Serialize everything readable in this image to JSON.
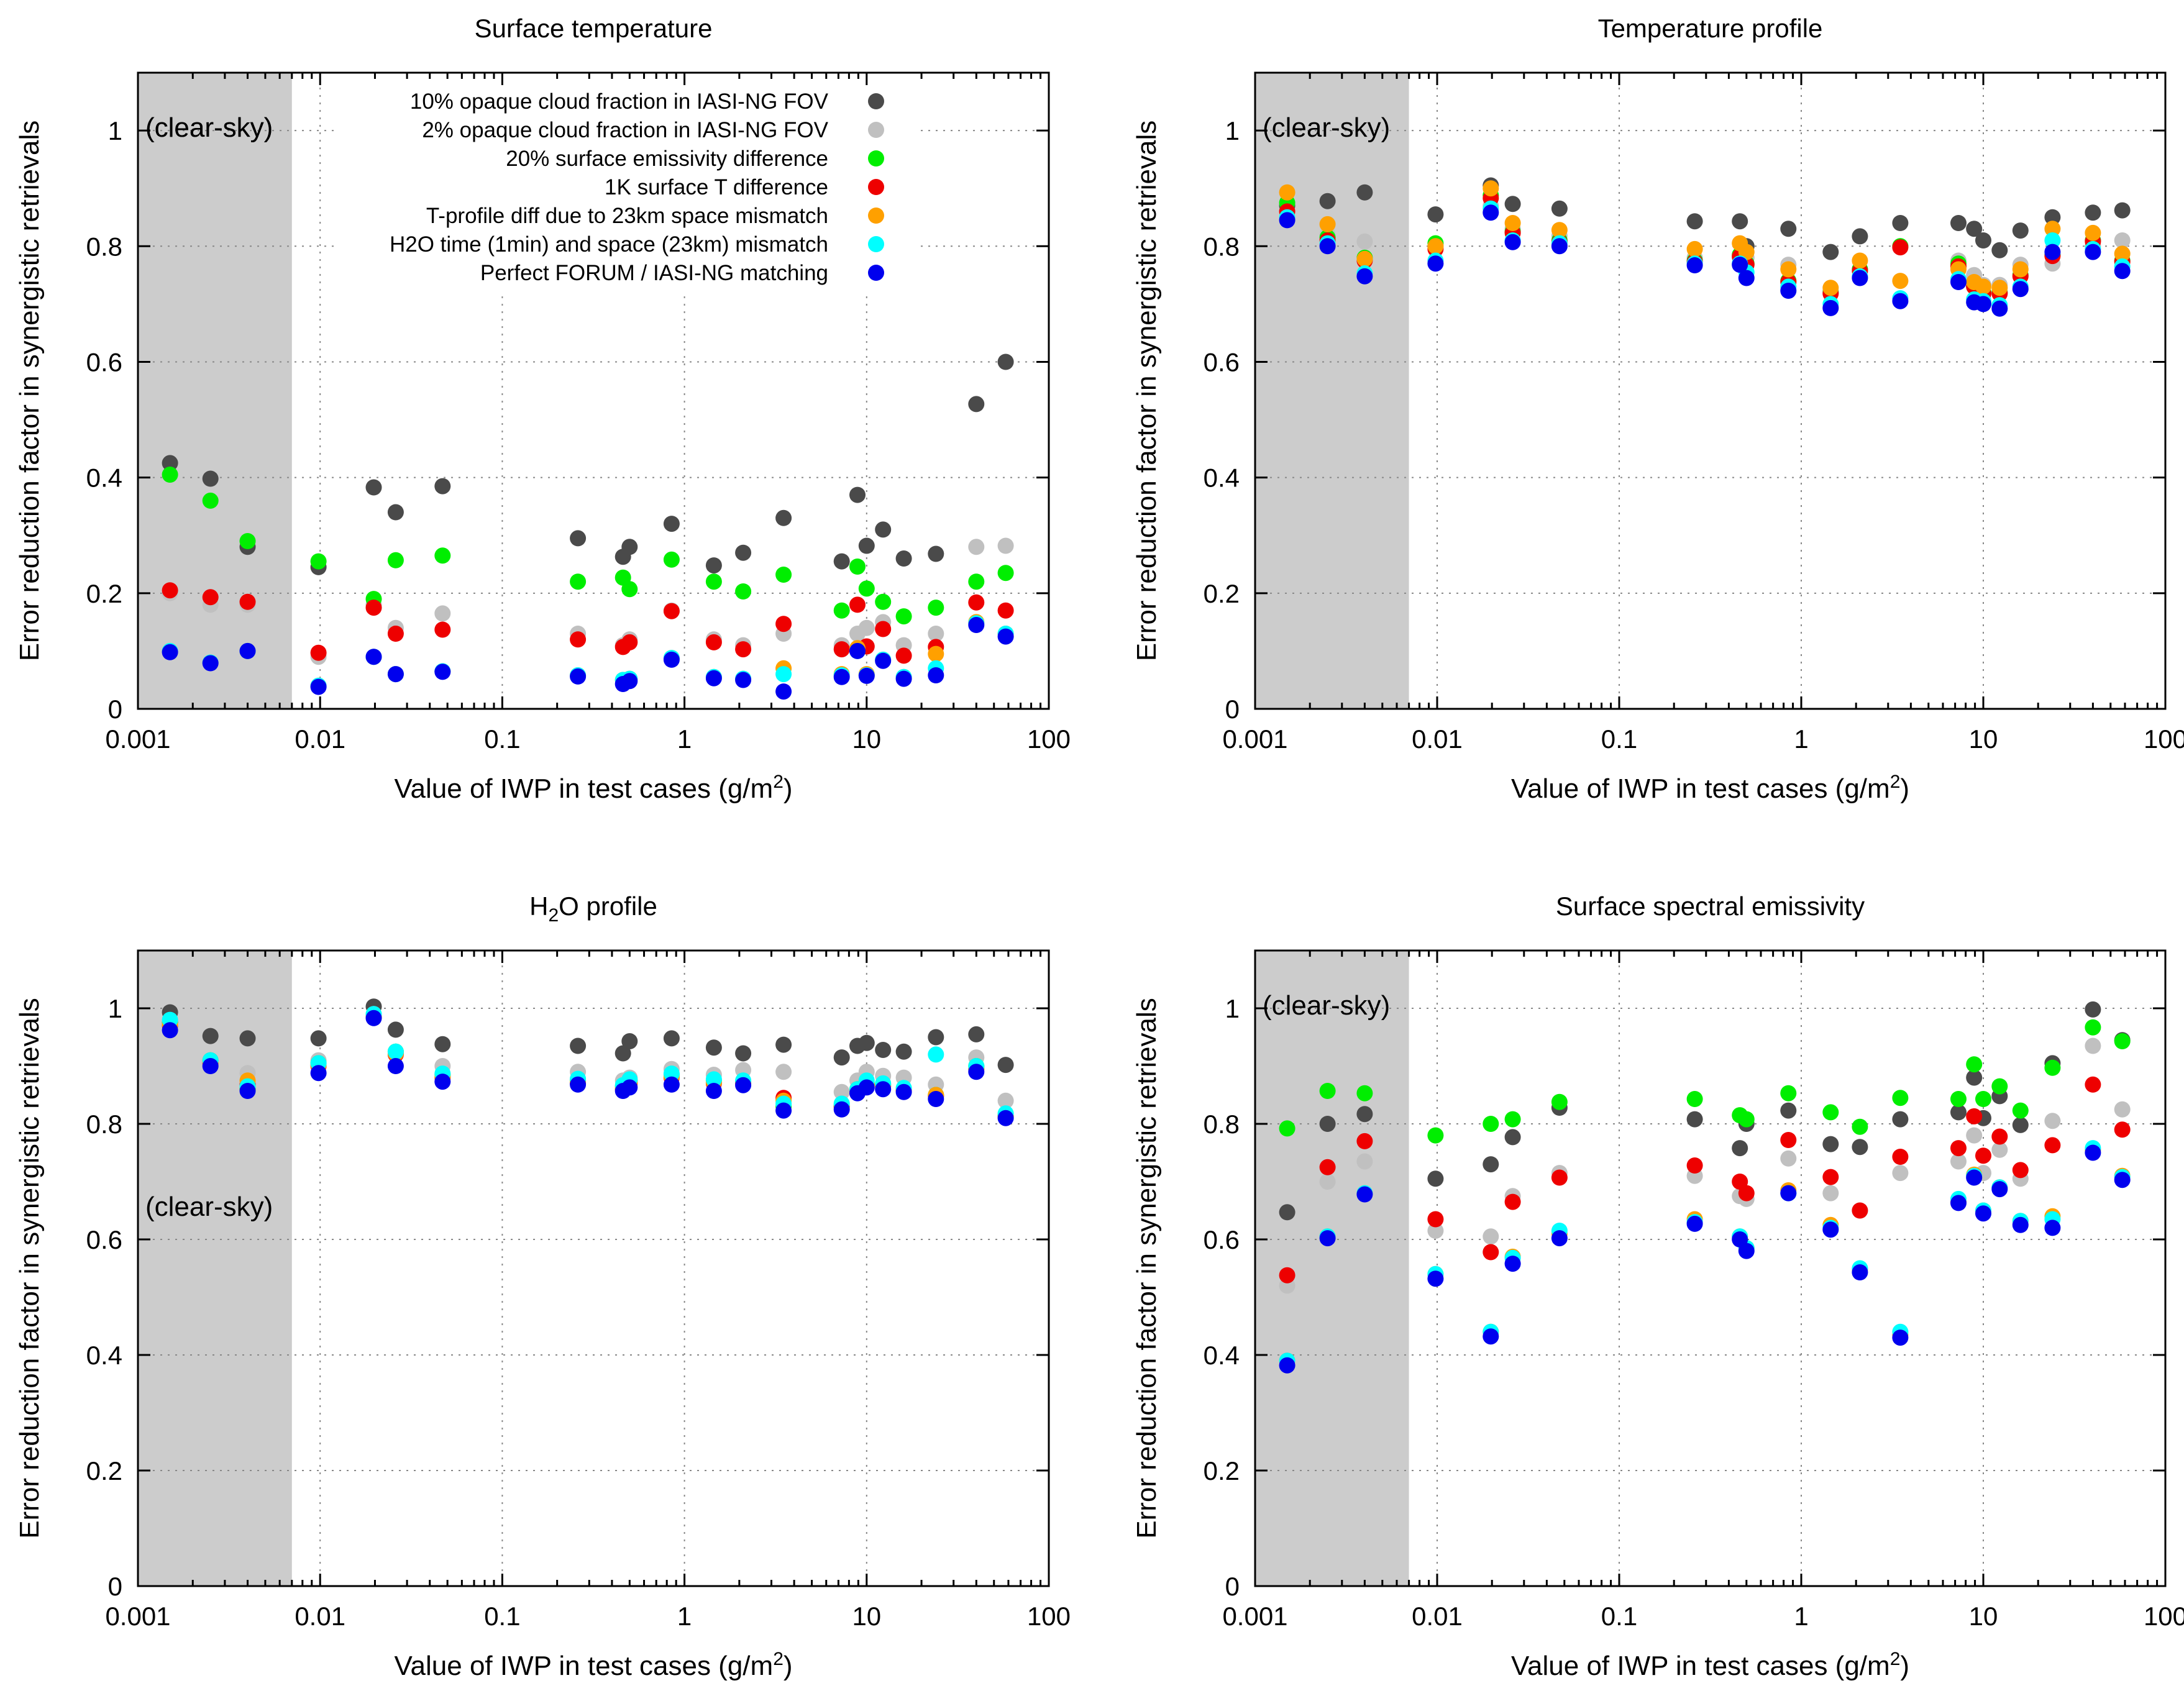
{
  "series_info": [
    {
      "name": "10% opaque cloud fraction in IASI-NG FOV",
      "color": "#4a4a4a"
    },
    {
      "name": "2% opaque cloud fraction in IASI-NG FOV",
      "color": "#c0c0c0"
    },
    {
      "name": "20% surface emissivity difference",
      "color": "#00ee00"
    },
    {
      "name": "1K surface T difference",
      "color": "#ee0000"
    },
    {
      "name": "T-profile diff due to 23km space mismatch",
      "color": "#ffa000"
    },
    {
      "name": "H2O time (1min) and space (23km) mismatch",
      "color": "#00ffff"
    },
    {
      "name": "Perfect FORUM / IASI-NG matching",
      "color": "#0000ee"
    }
  ],
  "clear_sky_label": "(clear-sky)",
  "chart_data": [
    {
      "type": "scatter",
      "title": "Surface temperature",
      "xlabel": "Value of IWP in test cases (g/m2)",
      "ylabel": "Error reduction factor in synergistic retrievals",
      "xscale": "log",
      "xlim": [
        0.001,
        100
      ],
      "ylim": [
        0,
        1.1
      ],
      "xticks": [
        "0.001",
        "0.01",
        "0.1",
        "1",
        "10",
        "100"
      ],
      "yticks": [
        "0",
        "0.2",
        "0.4",
        "0.6",
        "0.8",
        "1"
      ],
      "clear_sky_region": [
        0.001,
        0.007
      ],
      "legend_position": "top-right",
      "x": [
        0.0015,
        0.0025,
        0.004,
        0.0098,
        0.0197,
        0.026,
        0.047,
        0.26,
        0.46,
        0.5,
        0.85,
        1.45,
        2.1,
        3.5,
        7.3,
        8.9,
        10.0,
        12.3,
        16.0,
        24.0,
        40.0,
        58.0
      ],
      "series": [
        {
          "name": "10% opaque cloud fraction in IASI-NG FOV",
          "values": [
            0.425,
            0.398,
            0.28,
            0.245,
            0.383,
            0.34,
            0.385,
            0.295,
            0.263,
            0.28,
            0.32,
            0.248,
            0.27,
            0.33,
            0.255,
            0.37,
            0.282,
            0.31,
            0.26,
            0.268,
            0.527,
            0.6
          ]
        },
        {
          "name": "2% opaque cloud fraction in IASI-NG FOV",
          "values": [
            0.2,
            0.18,
            0.18,
            0.09,
            0.18,
            0.14,
            0.165,
            0.13,
            0.11,
            0.12,
            0.17,
            0.12,
            0.11,
            0.13,
            0.11,
            0.13,
            0.14,
            0.15,
            0.11,
            0.13,
            0.28,
            0.282
          ]
        },
        {
          "name": "20% surface emissivity difference",
          "values": [
            0.405,
            0.36,
            0.29,
            0.255,
            0.19,
            0.257,
            0.265,
            0.22,
            0.227,
            0.207,
            0.258,
            0.22,
            0.203,
            0.232,
            0.17,
            0.246,
            0.208,
            0.185,
            0.16,
            0.175,
            0.22,
            0.235
          ]
        },
        {
          "name": "1K surface T difference",
          "values": [
            0.205,
            0.193,
            0.185,
            0.097,
            0.175,
            0.13,
            0.137,
            0.12,
            0.107,
            0.115,
            0.169,
            0.115,
            0.103,
            0.147,
            0.103,
            0.18,
            0.108,
            0.138,
            0.092,
            0.107,
            0.184,
            0.17
          ]
        },
        {
          "name": "T-profile diff due to 23km space mismatch",
          "values": [
            0.1,
            0.08,
            0.1,
            0.04,
            0.09,
            0.06,
            0.065,
            0.058,
            0.05,
            0.052,
            0.088,
            0.055,
            0.052,
            0.07,
            0.06,
            0.105,
            0.06,
            0.085,
            0.055,
            0.095,
            0.15,
            0.13
          ]
        },
        {
          "name": "H2O time (1min) and space (23km) mismatch",
          "values": [
            0.1,
            0.08,
            0.1,
            0.04,
            0.09,
            0.06,
            0.065,
            0.058,
            0.05,
            0.052,
            0.088,
            0.055,
            0.052,
            0.06,
            0.058,
            0.1,
            0.058,
            0.085,
            0.055,
            0.07,
            0.148,
            0.13
          ]
        },
        {
          "name": "Perfect FORUM / IASI-NG matching",
          "values": [
            0.098,
            0.079,
            0.1,
            0.038,
            0.09,
            0.06,
            0.064,
            0.056,
            0.043,
            0.048,
            0.085,
            0.053,
            0.05,
            0.03,
            0.055,
            0.1,
            0.057,
            0.083,
            0.052,
            0.058,
            0.145,
            0.125
          ]
        }
      ]
    },
    {
      "type": "scatter",
      "title": "Temperature profile",
      "xlabel": "Value of IWP in test cases (g/m2)",
      "ylabel": "Error reduction factor in synergistic retrievals",
      "xscale": "log",
      "xlim": [
        0.001,
        100
      ],
      "ylim": [
        0,
        1.1
      ],
      "xticks": [
        "0.001",
        "0.01",
        "0.1",
        "1",
        "10",
        "100"
      ],
      "yticks": [
        "0",
        "0.2",
        "0.4",
        "0.6",
        "0.8",
        "1"
      ],
      "clear_sky_region": [
        0.001,
        0.007
      ],
      "x": [
        0.0015,
        0.0025,
        0.004,
        0.0098,
        0.0197,
        0.026,
        0.047,
        0.26,
        0.46,
        0.5,
        0.85,
        1.45,
        2.1,
        3.5,
        7.3,
        8.9,
        10.0,
        12.3,
        16.0,
        24.0,
        40.0,
        58.0
      ],
      "series": [
        {
          "name": "10% opaque cloud fraction in IASI-NG FOV",
          "values": [
            0.87,
            0.878,
            0.893,
            0.855,
            0.905,
            0.873,
            0.865,
            0.843,
            0.843,
            0.8,
            0.83,
            0.79,
            0.817,
            0.84,
            0.84,
            0.83,
            0.81,
            0.793,
            0.827,
            0.85,
            0.858,
            0.862
          ]
        },
        {
          "name": "2% opaque cloud fraction in IASI-NG FOV",
          "values": [
            0.86,
            0.82,
            0.808,
            0.8,
            0.87,
            0.83,
            0.818,
            0.78,
            0.78,
            0.78,
            0.768,
            0.723,
            0.76,
            0.8,
            0.775,
            0.75,
            0.733,
            0.733,
            0.768,
            0.77,
            0.8,
            0.81
          ]
        },
        {
          "name": "20% surface emissivity difference",
          "values": [
            0.875,
            0.815,
            0.78,
            0.805,
            0.888,
            0.825,
            0.81,
            0.775,
            0.785,
            0.77,
            0.74,
            0.72,
            0.76,
            0.8,
            0.77,
            0.73,
            0.72,
            0.72,
            0.75,
            0.785,
            0.81,
            0.775
          ]
        },
        {
          "name": "1K surface T difference",
          "values": [
            0.86,
            0.81,
            0.775,
            0.795,
            0.883,
            0.823,
            0.807,
            0.773,
            0.782,
            0.768,
            0.738,
            0.718,
            0.757,
            0.798,
            0.765,
            0.73,
            0.718,
            0.718,
            0.748,
            0.783,
            0.808,
            0.773
          ]
        },
        {
          "name": "T-profile diff due to 23km space mismatch",
          "values": [
            0.893,
            0.838,
            0.778,
            0.8,
            0.9,
            0.84,
            0.828,
            0.795,
            0.805,
            0.79,
            0.76,
            0.728,
            0.775,
            0.74,
            0.76,
            0.738,
            0.73,
            0.728,
            0.76,
            0.83,
            0.823,
            0.787
          ]
        },
        {
          "name": "H2O time (1min) and space (23km) mismatch",
          "values": [
            0.85,
            0.805,
            0.753,
            0.775,
            0.865,
            0.81,
            0.805,
            0.77,
            0.77,
            0.755,
            0.73,
            0.7,
            0.748,
            0.71,
            0.743,
            0.708,
            0.705,
            0.698,
            0.73,
            0.81,
            0.795,
            0.765
          ]
        },
        {
          "name": "Perfect FORUM / IASI-NG matching",
          "values": [
            0.845,
            0.8,
            0.748,
            0.77,
            0.858,
            0.807,
            0.8,
            0.767,
            0.768,
            0.745,
            0.723,
            0.693,
            0.745,
            0.705,
            0.738,
            0.703,
            0.7,
            0.692,
            0.726,
            0.79,
            0.79,
            0.757
          ]
        }
      ]
    },
    {
      "type": "scatter",
      "title": "H2O profile",
      "xlabel": "Value of IWP in test cases (g/m2)",
      "ylabel": "Error reduction factor in synergistic retrievals",
      "xscale": "log",
      "xlim": [
        0.001,
        100
      ],
      "ylim": [
        0,
        1.1
      ],
      "xticks": [
        "0.001",
        "0.01",
        "0.1",
        "1",
        "10",
        "100"
      ],
      "yticks": [
        "0",
        "0.2",
        "0.4",
        "0.6",
        "0.8",
        "1"
      ],
      "clear_sky_region": [
        0.001,
        0.007
      ],
      "x": [
        0.0015,
        0.0025,
        0.004,
        0.0098,
        0.0197,
        0.026,
        0.047,
        0.26,
        0.46,
        0.5,
        0.85,
        1.45,
        2.1,
        3.5,
        7.3,
        8.9,
        10.0,
        12.3,
        16.0,
        24.0,
        40.0,
        58.0
      ],
      "series": [
        {
          "name": "10% opaque cloud fraction in IASI-NG FOV",
          "values": [
            0.993,
            0.952,
            0.948,
            0.948,
            1.003,
            0.963,
            0.938,
            0.935,
            0.922,
            0.943,
            0.948,
            0.932,
            0.922,
            0.937,
            0.915,
            0.935,
            0.94,
            0.928,
            0.925,
            0.95,
            0.955,
            0.902
          ]
        },
        {
          "name": "2% opaque cloud fraction in IASI-NG FOV",
          "values": [
            0.97,
            0.905,
            0.888,
            0.91,
            0.99,
            0.925,
            0.9,
            0.89,
            0.875,
            0.88,
            0.895,
            0.885,
            0.893,
            0.89,
            0.855,
            0.875,
            0.89,
            0.883,
            0.88,
            0.868,
            0.915,
            0.84
          ]
        },
        {
          "name": "20% surface emissivity difference",
          "values": [
            0.975,
            0.91,
            0.86,
            0.905,
            0.985,
            0.925,
            0.885,
            0.875,
            0.865,
            0.875,
            0.885,
            0.875,
            0.873,
            0.83,
            0.83,
            0.86,
            0.87,
            0.868,
            0.86,
            0.85,
            0.9,
            0.815
          ]
        },
        {
          "name": "1K surface T difference",
          "values": [
            0.97,
            0.905,
            0.868,
            0.9,
            0.985,
            0.92,
            0.88,
            0.87,
            0.86,
            0.87,
            0.88,
            0.87,
            0.87,
            0.845,
            0.83,
            0.858,
            0.868,
            0.865,
            0.858,
            0.848,
            0.895,
            0.812
          ]
        },
        {
          "name": "T-profile diff due to 23km space mismatch",
          "values": [
            0.972,
            0.907,
            0.875,
            0.902,
            0.987,
            0.922,
            0.882,
            0.872,
            0.862,
            0.872,
            0.882,
            0.872,
            0.872,
            0.84,
            0.832,
            0.86,
            0.87,
            0.866,
            0.86,
            0.85,
            0.897,
            0.813
          ]
        },
        {
          "name": "H2O time (1min) and space (23km) mismatch",
          "values": [
            0.98,
            0.91,
            0.865,
            0.905,
            0.99,
            0.925,
            0.887,
            0.878,
            0.867,
            0.877,
            0.887,
            0.877,
            0.875,
            0.835,
            0.835,
            0.86,
            0.875,
            0.87,
            0.862,
            0.92,
            0.9,
            0.818
          ]
        },
        {
          "name": "Perfect FORUM / IASI-NG matching",
          "values": [
            0.962,
            0.9,
            0.857,
            0.888,
            0.983,
            0.9,
            0.873,
            0.868,
            0.857,
            0.863,
            0.868,
            0.857,
            0.867,
            0.823,
            0.825,
            0.853,
            0.863,
            0.86,
            0.855,
            0.843,
            0.89,
            0.81
          ]
        }
      ]
    },
    {
      "type": "scatter",
      "title": "Surface spectral emissivity",
      "xlabel": "Value of IWP in test cases (g/m2)",
      "ylabel": "Error reduction factor in synergistic retrievals",
      "xscale": "log",
      "xlim": [
        0.001,
        100
      ],
      "ylim": [
        0,
        1.1
      ],
      "xticks": [
        "0.001",
        "0.01",
        "0.1",
        "1",
        "10",
        "100"
      ],
      "yticks": [
        "0",
        "0.2",
        "0.4",
        "0.6",
        "0.8",
        "1"
      ],
      "clear_sky_region": [
        0.001,
        0.007
      ],
      "x": [
        0.0015,
        0.0025,
        0.004,
        0.0098,
        0.0197,
        0.026,
        0.047,
        0.26,
        0.46,
        0.5,
        0.85,
        1.45,
        2.1,
        3.5,
        7.3,
        8.9,
        10.0,
        12.3,
        16.0,
        24.0,
        40.0,
        58.0
      ],
      "series": [
        {
          "name": "10% opaque cloud fraction in IASI-NG FOV",
          "values": [
            0.647,
            0.8,
            0.817,
            0.705,
            0.73,
            0.777,
            0.828,
            0.808,
            0.758,
            0.8,
            0.823,
            0.765,
            0.76,
            0.808,
            0.82,
            0.88,
            0.81,
            0.848,
            0.798,
            0.905,
            0.998,
            0.945
          ]
        },
        {
          "name": "2% opaque cloud fraction in IASI-NG FOV",
          "values": [
            0.52,
            0.7,
            0.735,
            0.615,
            0.605,
            0.675,
            0.715,
            0.71,
            0.675,
            0.67,
            0.74,
            0.68,
            0.65,
            0.715,
            0.735,
            0.78,
            0.715,
            0.755,
            0.705,
            0.805,
            0.935,
            0.825
          ]
        },
        {
          "name": "20% surface emissivity difference",
          "values": [
            0.792,
            0.857,
            0.853,
            0.78,
            0.8,
            0.808,
            0.838,
            0.843,
            0.815,
            0.808,
            0.853,
            0.82,
            0.795,
            0.845,
            0.843,
            0.903,
            0.843,
            0.865,
            0.823,
            0.897,
            0.967,
            0.943
          ]
        },
        {
          "name": "1K surface T difference",
          "values": [
            0.538,
            0.725,
            0.77,
            0.635,
            0.578,
            0.665,
            0.707,
            0.728,
            0.7,
            0.68,
            0.772,
            0.708,
            0.65,
            0.743,
            0.758,
            0.813,
            0.745,
            0.778,
            0.72,
            0.763,
            0.868,
            0.79
          ]
        },
        {
          "name": "T-profile diff due to 23km space mismatch",
          "values": [
            0.39,
            0.605,
            0.68,
            0.54,
            0.44,
            0.57,
            0.61,
            0.635,
            0.605,
            0.585,
            0.685,
            0.625,
            0.548,
            0.435,
            0.665,
            0.712,
            0.65,
            0.69,
            0.632,
            0.64,
            0.755,
            0.71
          ]
        },
        {
          "name": "H2O time (1min) and space (23km) mismatch",
          "values": [
            0.39,
            0.605,
            0.68,
            0.54,
            0.44,
            0.568,
            0.615,
            0.63,
            0.605,
            0.585,
            0.68,
            0.62,
            0.55,
            0.44,
            0.67,
            0.71,
            0.65,
            0.69,
            0.632,
            0.635,
            0.758,
            0.708
          ]
        },
        {
          "name": "Perfect FORUM / IASI-NG matching",
          "values": [
            0.382,
            0.602,
            0.678,
            0.532,
            0.432,
            0.558,
            0.602,
            0.627,
            0.6,
            0.58,
            0.68,
            0.617,
            0.543,
            0.43,
            0.663,
            0.707,
            0.645,
            0.687,
            0.625,
            0.62,
            0.75,
            0.703
          ]
        }
      ]
    }
  ]
}
